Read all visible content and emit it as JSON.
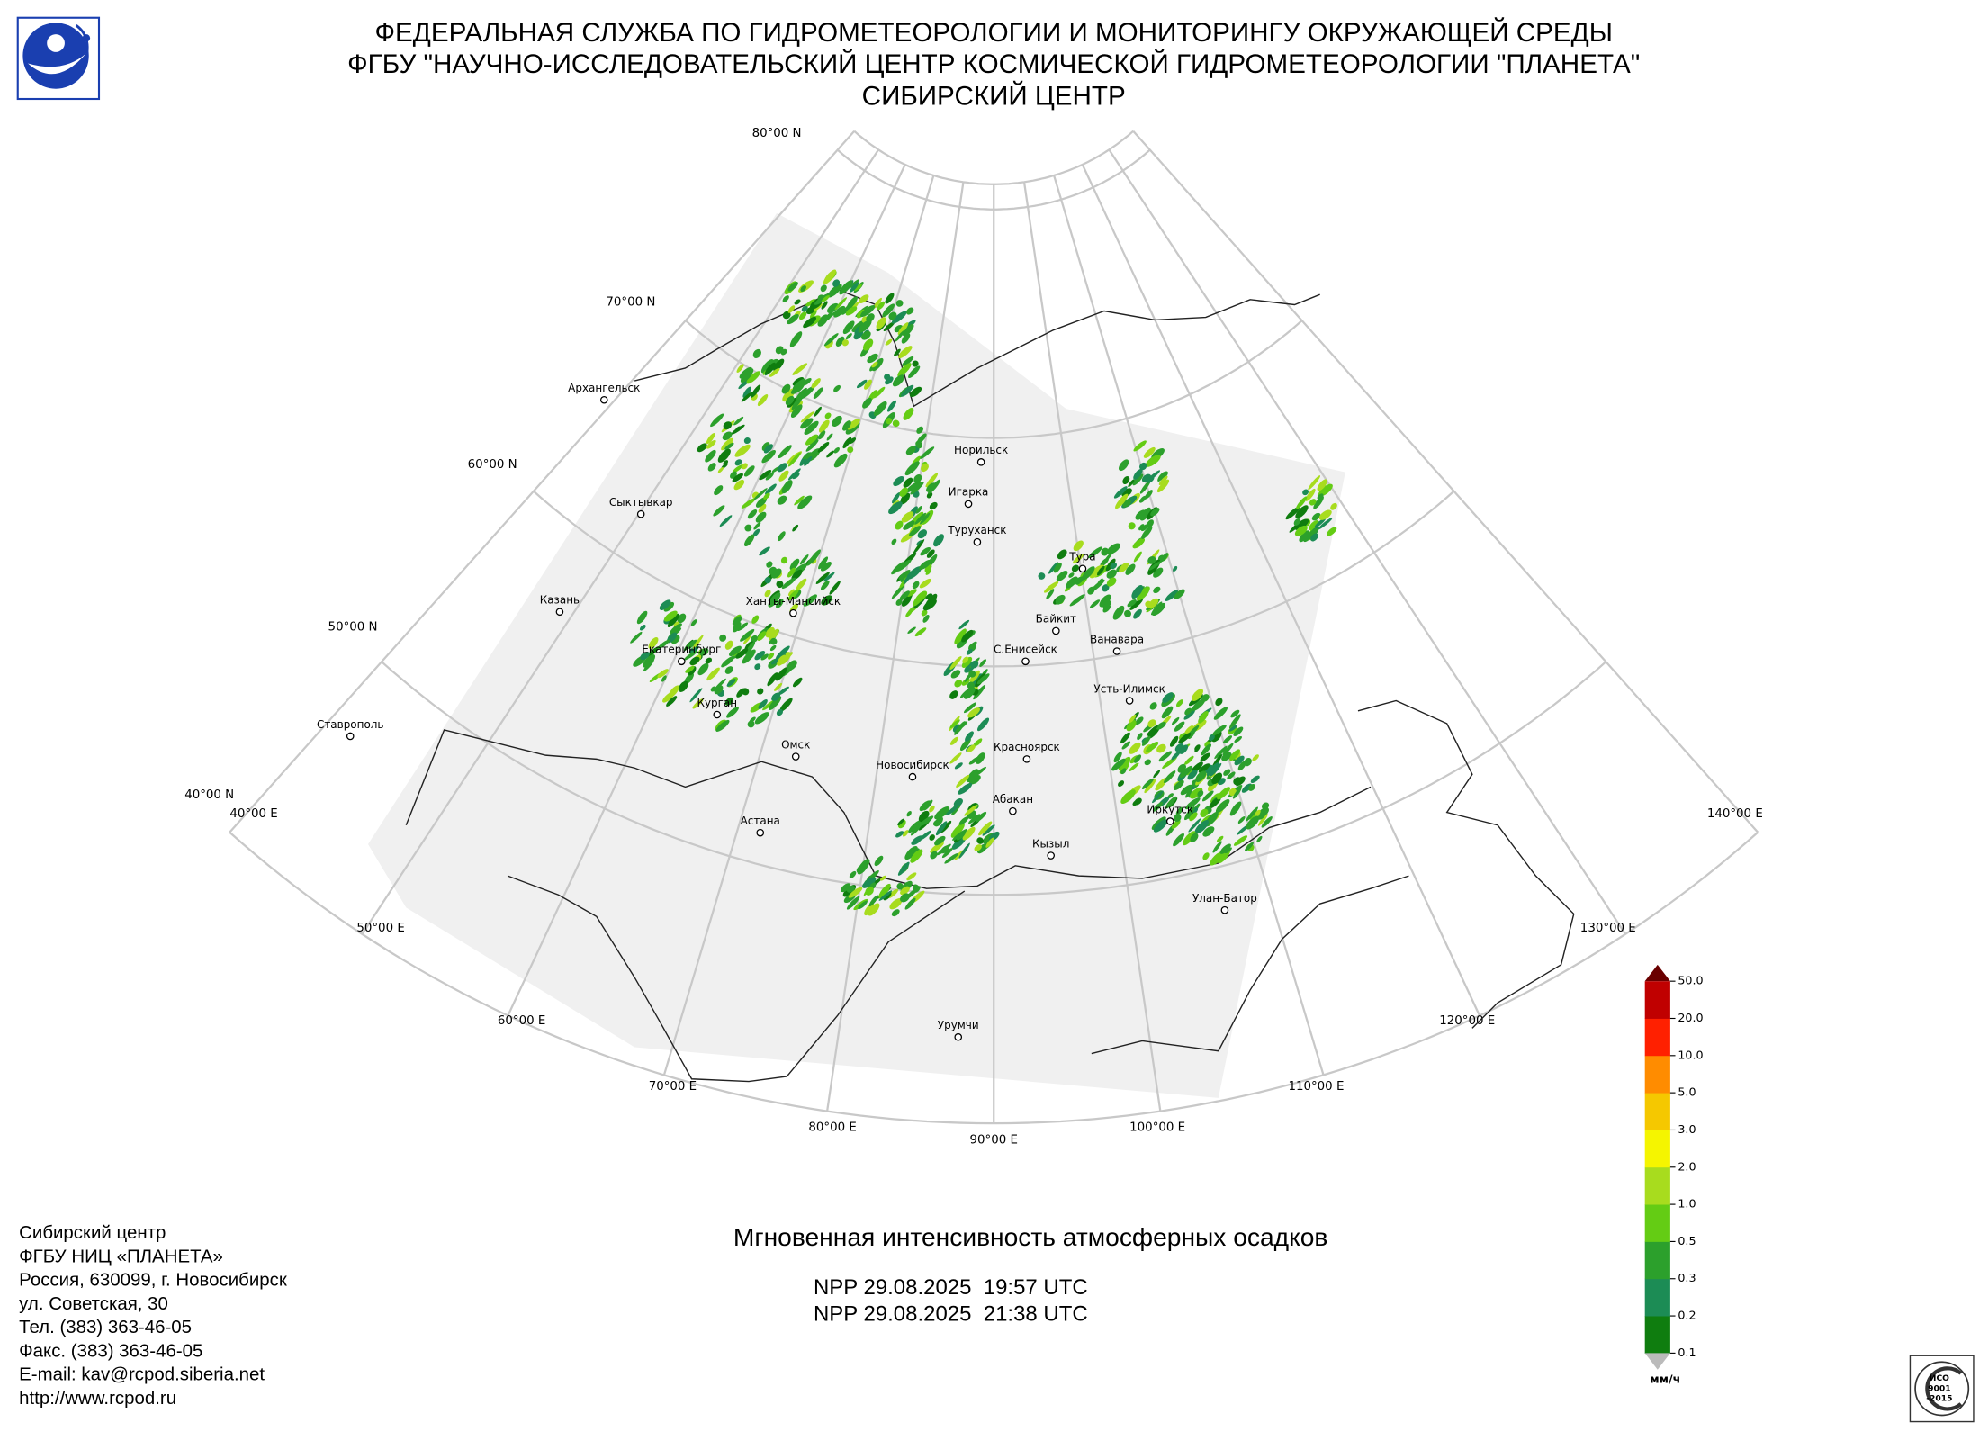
{
  "header": {
    "lines": [
      "ФЕДЕРАЛЬНАЯ СЛУЖБА ПО ГИДРОМЕТЕОРОЛОГИИ И МОНИТОРИНГУ ОКРУЖАЮЩЕЙ СРЕДЫ",
      "ФГБУ \"НАУЧНО-ИССЛЕДОВАТЕЛЬСКИЙ ЦЕНТР КОСМИЧЕСКОЙ ГИДРОМЕТЕОРОЛОГИИ \"ПЛАНЕТА\"",
      "СИБИРСКИЙ ЦЕНТР"
    ]
  },
  "map": {
    "graticule": {
      "lat_labels": [
        "80°00 N",
        "70°00 N",
        "60°00 N",
        "50°00 N",
        "40°00 N"
      ],
      "lon_labels": [
        "40°00 E",
        "50°00 E",
        "60°00 E",
        "70°00 E",
        "80°00 E",
        "90°00 E",
        "100°00 E",
        "110°00 E",
        "120°00 E",
        "130°00 E",
        "140°00 E"
      ]
    },
    "cities": [
      "Архангельск",
      "Сыктывкар",
      "Казань",
      "Ставрополь",
      "Екатеринбург",
      "Курган",
      "Ханты-Мансийск",
      "Омск",
      "Астана",
      "Новосибирск",
      "Норильск",
      "Игарка",
      "Туруханск",
      "Тура",
      "Байкит",
      "Ванавара",
      "С.Енисейск",
      "Усть-Илимск",
      "Красноярск",
      "Абакан",
      "Кызыл",
      "Иркутск",
      "Улан-Батор",
      "Урумчи"
    ]
  },
  "legend": {
    "levels": [
      "0.1",
      "0.2",
      "0.3",
      "0.5",
      "1.0",
      "2.0",
      "3.0",
      "5.0",
      "10.0",
      "20.0",
      "50.0"
    ],
    "colors": [
      "#0f7d0f",
      "#1c8c55",
      "#2ca02c",
      "#64cc14",
      "#a8dc1e",
      "#f5f500",
      "#f5c800",
      "#ff8c00",
      "#ff2000",
      "#c00000"
    ],
    "over_color": "#6a0000",
    "under_color": "#bbbbbb",
    "unit": "мм/ч"
  },
  "product": {
    "title": "Мгновенная интенсивность атмосферных осадков",
    "passes": [
      "NPP 29.08.2025  19:57 UTC",
      "NPP 29.08.2025  21:38 UTC"
    ]
  },
  "contact": {
    "lines": [
      "Сибирский центр",
      "ФГБУ НИЦ «ПЛАНЕТА»",
      "Россия, 630099, г. Новосибирск",
      "ул. Советская, 30",
      "Тел. (383) 363-46-05",
      "Факс. (383) 363-46-05",
      "E-mail: kav@rcpod.siberia.net",
      "http://www.rcpod.ru"
    ]
  },
  "iso_badge": {
    "lines": [
      "ИСО",
      "9001",
      "-2015"
    ]
  }
}
